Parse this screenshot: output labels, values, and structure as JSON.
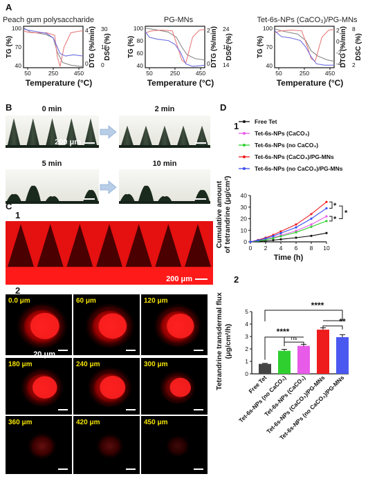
{
  "panels": {
    "A": {
      "letter": "A"
    },
    "B": {
      "letter": "B",
      "times": [
        "0 min",
        "2 min",
        "5 min",
        "10 min"
      ],
      "scale": "200 μm"
    },
    "C": {
      "letter": "C",
      "sub1": "1",
      "sub2": "2",
      "scale1": "200 μm",
      "scale2": "20 μm",
      "depths": [
        "0.0 μm",
        "60 μm",
        "120 μm",
        "180 μm",
        "240 μm",
        "300 μm",
        "360 μm",
        "420 μm",
        "450 μm"
      ],
      "intensity": [
        1.0,
        0.95,
        0.9,
        0.75,
        0.8,
        0.55,
        0.3,
        0.25,
        0.15
      ]
    },
    "D": {
      "letter": "D",
      "sub1": "1",
      "sub2": "2"
    }
  },
  "chart_data": [
    {
      "type": "line",
      "title": "Peach gum polysaccharide",
      "xlabel": "Temperature (°C)",
      "ylabel": "TG (%)",
      "ylabel2": "DTG (%/min)",
      "ylabel3": "DSC (%)",
      "xlim": [
        30,
        470
      ],
      "xticks": [
        "50",
        "250",
        "450"
      ],
      "yticks": [
        "100",
        "70",
        "40"
      ],
      "y2ticks": [
        "4",
        "0"
      ],
      "y3ticks": [
        "30",
        "15",
        "0"
      ],
      "ylim": [
        38,
        102
      ],
      "series": [
        {
          "color": "#8a8a8a",
          "x": [
            30,
            80,
            150,
            200,
            250,
            280,
            320,
            380,
            450,
            470
          ],
          "y": [
            100,
            93,
            91,
            89,
            84,
            62,
            46,
            42,
            40,
            40
          ]
        },
        {
          "color": "#e87a7a",
          "x": [
            30,
            60,
            100,
            200,
            260,
            280,
            300,
            330,
            380,
            430,
            470
          ],
          "y": [
            95,
            93,
            92,
            92,
            88,
            55,
            40,
            70,
            92,
            94,
            95
          ]
        },
        {
          "color": "#6e6ee0",
          "x": [
            30,
            60,
            120,
            200,
            250,
            275,
            300,
            340,
            400,
            470
          ],
          "y": [
            98,
            96,
            94,
            91,
            84,
            72,
            60,
            56,
            58,
            56
          ]
        }
      ]
    },
    {
      "type": "line",
      "title": "PG-MNs",
      "xlabel": "Temperature (°C)",
      "ylabel": "TG (%)",
      "ylabel2": "DTG (%/min)",
      "ylabel3": "DSC (%)",
      "xlim": [
        30,
        470
      ],
      "xticks": [
        "50",
        "250",
        "450"
      ],
      "yticks": [
        "100",
        "80",
        "60",
        "40"
      ],
      "y2ticks": [
        "2",
        "0"
      ],
      "y3ticks": [
        "24",
        "19",
        "14"
      ],
      "ylim": [
        38,
        102
      ],
      "series": [
        {
          "color": "#8a8a8a",
          "x": [
            30,
            100,
            200,
            260,
            300,
            340,
            400,
            470
          ],
          "y": [
            99,
            97,
            93,
            85,
            70,
            58,
            52,
            50
          ]
        },
        {
          "color": "#e87a7a",
          "x": [
            30,
            80,
            150,
            230,
            270,
            300,
            330,
            380,
            430,
            470
          ],
          "y": [
            92,
            95,
            96,
            95,
            70,
            50,
            45,
            85,
            96,
            97
          ]
        },
        {
          "color": "#6e6ee0",
          "x": [
            30,
            60,
            120,
            200,
            250,
            290,
            330,
            380,
            430,
            470
          ],
          "y": [
            94,
            85,
            82,
            80,
            74,
            62,
            44,
            40,
            41,
            42
          ]
        }
      ]
    },
    {
      "type": "line",
      "title": "Tet-6s-NPs (CaCO₃)/PG-MNs",
      "xlabel": "Temperature (°C)",
      "ylabel": "TG (%)",
      "ylabel2": "DTG (%/min)",
      "ylabel3": "DSC (%)",
      "xlim": [
        30,
        470
      ],
      "xticks": [
        "50",
        "250",
        "450"
      ],
      "yticks": [
        "100",
        "70",
        "40"
      ],
      "y2ticks": [
        "2",
        "0",
        "-2",
        "-4"
      ],
      "y3ticks": [
        "8",
        "2"
      ],
      "ylim": [
        38,
        102
      ],
      "series": [
        {
          "color": "#8a8a8a",
          "x": [
            30,
            100,
            200,
            260,
            300,
            350,
            420,
            470
          ],
          "y": [
            98,
            94,
            90,
            80,
            64,
            56,
            50,
            48
          ]
        },
        {
          "color": "#e87a7a",
          "x": [
            30,
            80,
            150,
            230,
            270,
            300,
            330,
            380,
            430,
            470
          ],
          "y": [
            92,
            95,
            96,
            95,
            72,
            52,
            48,
            85,
            96,
            97
          ]
        },
        {
          "color": "#6e6ee0",
          "x": [
            30,
            80,
            150,
            220,
            260,
            300,
            340,
            400,
            470
          ],
          "y": [
            95,
            86,
            84,
            80,
            70,
            55,
            44,
            42,
            42
          ]
        }
      ]
    },
    {
      "type": "line",
      "xlabel": "Time (h)",
      "ylabel": "Cumulative amount of tetrandrine (μg/cm²)",
      "xlim": [
        0,
        10
      ],
      "ylim": [
        0,
        40
      ],
      "xticks": [
        "0",
        "2",
        "4",
        "6",
        "8",
        "10"
      ],
      "yticks": [
        "0",
        "10",
        "20",
        "30",
        "40"
      ],
      "significance": [
        "*",
        "*",
        "*"
      ],
      "x": [
        0,
        1,
        2,
        3,
        4,
        6,
        8,
        10
      ],
      "series": [
        {
          "name": "Free Tet",
          "color": "#111111",
          "y": [
            0,
            0.4,
            0.9,
            1.5,
            2.2,
            3.6,
            5.2,
            7.6
          ]
        },
        {
          "name": "Tet-6s-NPs (CaCO₃)",
          "color": "#e85be8",
          "y": [
            0,
            1.0,
            2.3,
            3.8,
            5.6,
            9.5,
            15,
            22
          ]
        },
        {
          "name": "Tet-6s-NPs (no CaCO₃)",
          "color": "#2fcf2f",
          "y": [
            0,
            0.8,
            1.9,
            3.2,
            4.8,
            8.2,
            13,
            18
          ]
        },
        {
          "name": "Tet-6s-NPs (CaCO₃)/PG-MNs",
          "color": "#ee1c1c",
          "y": [
            0,
            1.6,
            3.6,
            6,
            9,
            15,
            24,
            34.5
          ]
        },
        {
          "name": "Tet-6s-NPs (no CaCO₃)/PG-MNs",
          "color": "#3a4cf0",
          "y": [
            0,
            1.3,
            3,
            5,
            7.5,
            12.5,
            20,
            29
          ]
        }
      ]
    },
    {
      "type": "bar",
      "ylabel": "Tetrandrine transdermal flux (μg/cm²/h)",
      "ylim": [
        0,
        5
      ],
      "yticks": [
        "0",
        "1",
        "2",
        "3",
        "4",
        "5"
      ],
      "categories": [
        "Free Tet",
        "Tet-6s-NPs (no CaCO₃)",
        "Tet-6s-NPs (CaCO₃)",
        "Tet-6s-NPs (CaCO₃)/PG-MNs",
        "Tet-6s-NPs (no CaCO₃)/PG-MNs"
      ],
      "values": [
        0.8,
        1.85,
        2.25,
        3.55,
        2.95
      ],
      "errors": [
        0.04,
        0.12,
        0.12,
        0.15,
        0.2
      ],
      "colors": [
        "#444444",
        "#2fcf2f",
        "#e85be8",
        "#ee1c1c",
        "#4a58f0"
      ],
      "significance": {
        "s1": "****",
        "s2": "****",
        "s3": "ns",
        "s4": "**"
      }
    }
  ]
}
